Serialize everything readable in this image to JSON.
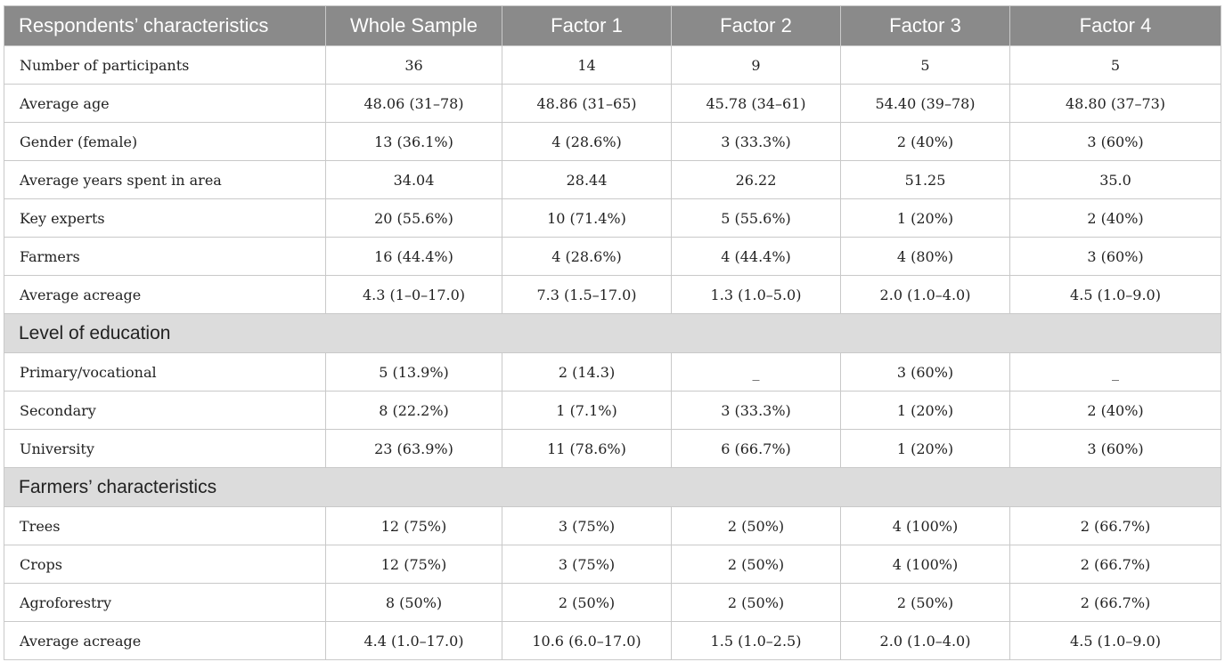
{
  "table": {
    "headers": [
      "Respondents’ characteristics",
      "Whole Sample",
      "Factor 1",
      "Factor 2",
      "Factor 3",
      "Factor 4"
    ],
    "rows1": [
      [
        "Number of participants",
        "36",
        "14",
        "9",
        "5",
        "5"
      ],
      [
        "Average age",
        "48.06 (31–78)",
        "48.86 (31–65)",
        "45.78 (34–61)",
        "54.40 (39–78)",
        "48.80 (37–73)"
      ],
      [
        "Gender (female)",
        "13 (36.1%)",
        "4 (28.6%)",
        "3 (33.3%)",
        "2 (40%)",
        "3 (60%)"
      ],
      [
        "Average years spent in area",
        "34.04",
        "28.44",
        "26.22",
        "51.25",
        "35.0"
      ],
      [
        "Key experts",
        "20 (55.6%)",
        "10 (71.4%)",
        "5 (55.6%)",
        "1 (20%)",
        "2 (40%)"
      ],
      [
        "Farmers",
        "16 (44.4%)",
        "4 (28.6%)",
        "4 (44.4%)",
        "4 (80%)",
        "3 (60%)"
      ],
      [
        "Average acreage",
        "4.3 (1–0–17.0)",
        "7.3 (1.5–17.0)",
        "1.3 (1.0–5.0)",
        "2.0 (1.0–4.0)",
        "4.5 (1.0–9.0)"
      ]
    ],
    "section1": "Level of education",
    "rows2": [
      [
        "Primary/vocational",
        "5 (13.9%)",
        "2 (14.3)",
        "_",
        "3 (60%)",
        "_"
      ],
      [
        "Secondary",
        "8 (22.2%)",
        "1 (7.1%)",
        "3 (33.3%)",
        "1 (20%)",
        "2 (40%)"
      ],
      [
        "University",
        "23 (63.9%)",
        "11 (78.6%)",
        "6 (66.7%)",
        "1 (20%)",
        "3 (60%)"
      ]
    ],
    "section2": "Farmers’ characteristics",
    "rows3": [
      [
        "Trees",
        "12 (75%)",
        "3 (75%)",
        "2 (50%)",
        "4 (100%)",
        "2 (66.7%)"
      ],
      [
        "Crops",
        "12 (75%)",
        "3 (75%)",
        "2 (50%)",
        "4 (100%)",
        "2 (66.7%)"
      ],
      [
        "Agroforestry",
        "8 (50%)",
        "2 (50%)",
        "2 (50%)",
        "2 (50%)",
        "2 (66.7%)"
      ],
      [
        "Average acreage",
        "4.4 (1.0–17.0)",
        "10.6 (6.0–17.0)",
        "1.5 (1.0–2.5)",
        "2.0 (1.0–4.0)",
        "4.5 (1.0–9.0)"
      ]
    ]
  }
}
